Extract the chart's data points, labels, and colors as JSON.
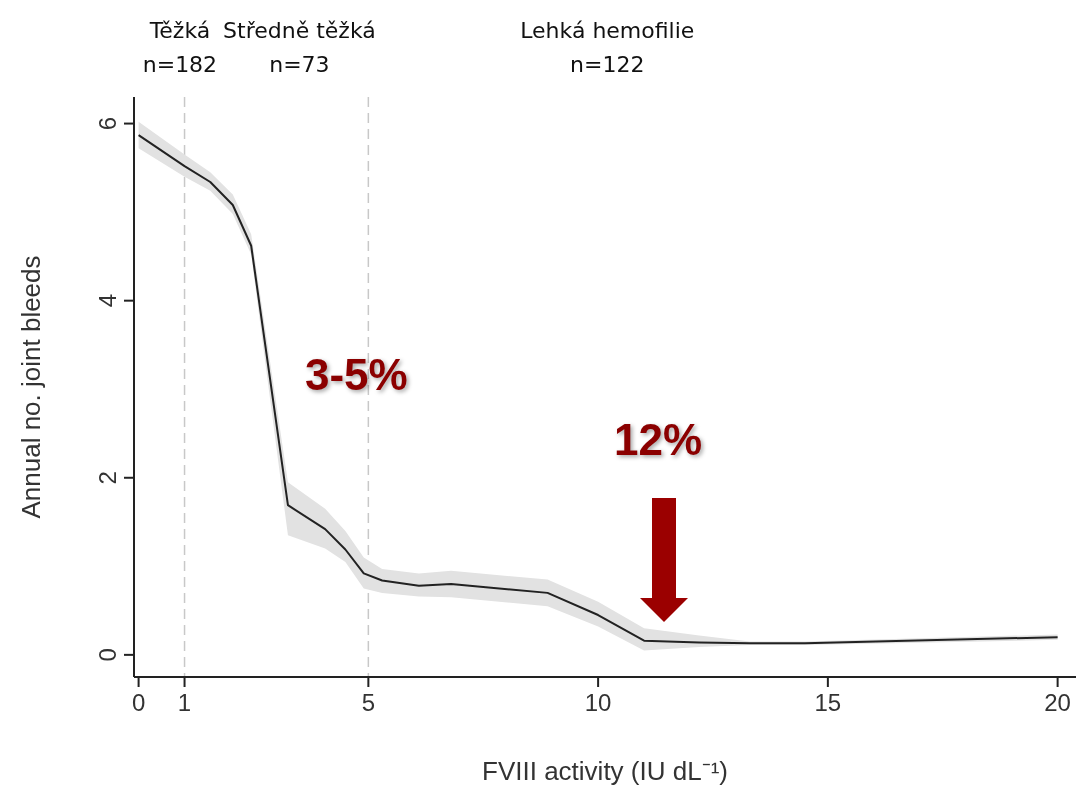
{
  "chart_data": {
    "type": "line",
    "xlabel": "FVIII activity (IU dL⁻¹)",
    "ylabel": "Annual no. joint bleeds",
    "x": [
      0,
      1,
      1.56,
      2.05,
      2.45,
      3.25,
      4.06,
      4.5,
      4.9,
      5.3,
      6.1,
      6.8,
      8.9,
      10,
      11,
      12.2,
      13.3,
      14.5,
      20
    ],
    "series": [
      {
        "color": "#222222",
        "values": [
          5.87,
          5.52,
          5.34,
          5.08,
          4.62,
          1.69,
          1.42,
          1.19,
          0.92,
          0.84,
          0.78,
          0.8,
          0.7,
          0.45,
          0.16,
          0.14,
          0.13,
          0.13,
          0.2
        ],
        "lower": [
          5.72,
          5.4,
          5.24,
          4.98,
          4.52,
          1.35,
          1.2,
          1.05,
          0.75,
          0.7,
          0.66,
          0.65,
          0.55,
          0.32,
          0.05,
          0.09,
          0.11,
          0.11,
          0.17
        ],
        "upper": [
          6.02,
          5.65,
          5.45,
          5.2,
          4.75,
          1.95,
          1.65,
          1.4,
          1.1,
          0.97,
          0.92,
          0.95,
          0.85,
          0.6,
          0.3,
          0.22,
          0.15,
          0.15,
          0.23
        ]
      }
    ],
    "xlim": [
      -0.1,
      20.4
    ],
    "ylim": [
      -0.25,
      6.3
    ],
    "xticks": [
      0,
      1,
      5,
      10,
      15,
      20
    ],
    "yticks": [
      0,
      2,
      4,
      6
    ],
    "ref_lines": [
      {
        "axis": "x",
        "value": 1,
        "color": "#c8c8c8",
        "line_style": "dashed"
      },
      {
        "axis": "x",
        "value": 5,
        "color": "#c8c8c8",
        "line_style": "dashed"
      }
    ],
    "annotations": [
      "Těžká\nn=182",
      "Středně těžká\nn=73",
      "Lehká hemofilie\nn=122",
      "3-5%",
      "12%"
    ]
  }
}
